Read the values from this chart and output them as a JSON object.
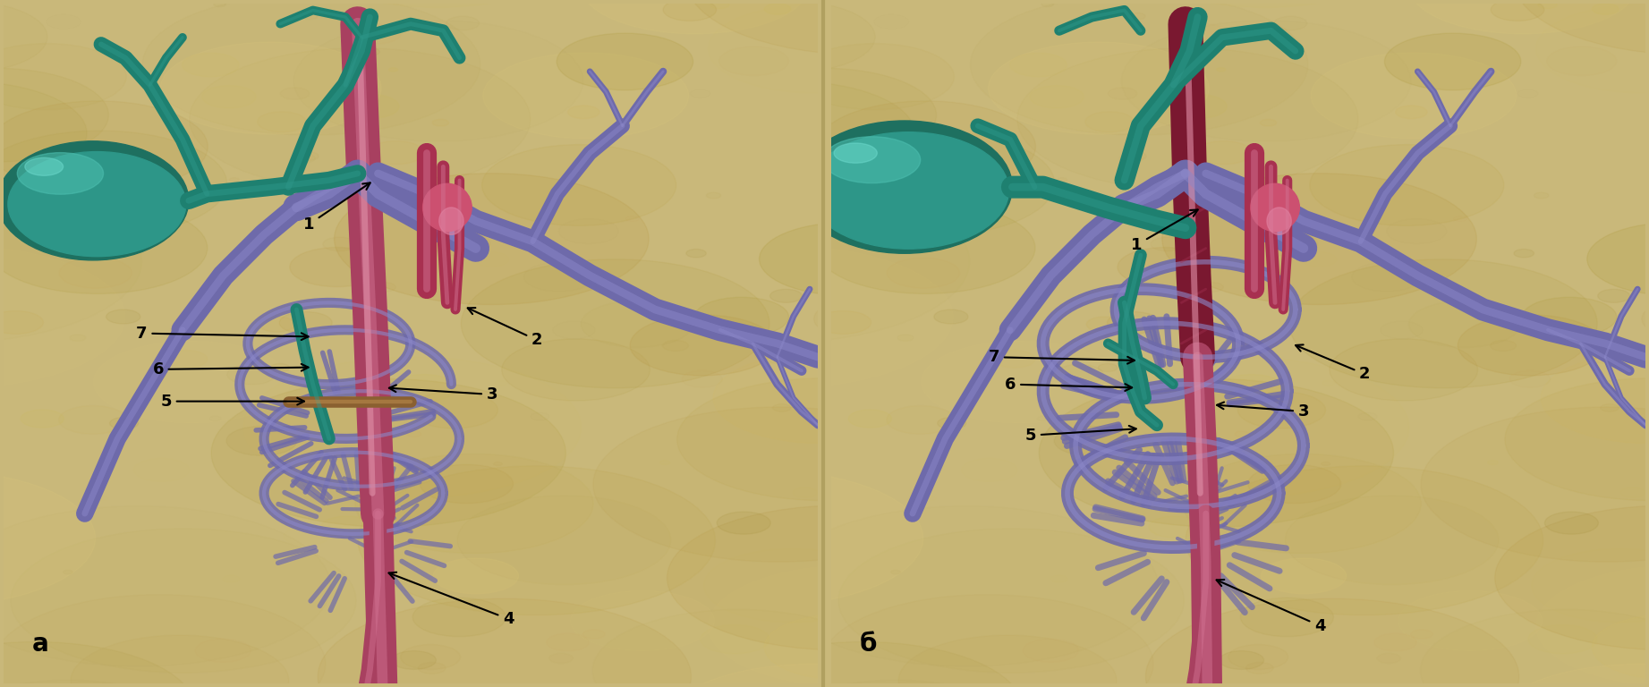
{
  "figsize": [
    18.43,
    7.68
  ],
  "dpi": 100,
  "bg_color": "#c9b87a",
  "panel_a_label": "а",
  "panel_b_label": "б",
  "label_fontsize": 20,
  "spleen_color": "#2d9688",
  "spleen_hi_color": "#4dbfb0",
  "vein_color": "#8b87c8",
  "vein_dark": "#6e6aaa",
  "portal_color": "#c96080",
  "portal_dark": "#a84060",
  "thromb_color": "#7a1830",
  "brown_color": "#9b7040",
  "pink_struct": "#d07090",
  "bg_tex1": "#c0a855",
  "bg_tex2": "#d4bc6a",
  "bg_tex3": "#b8a048",
  "divider_color": "#b0a060"
}
